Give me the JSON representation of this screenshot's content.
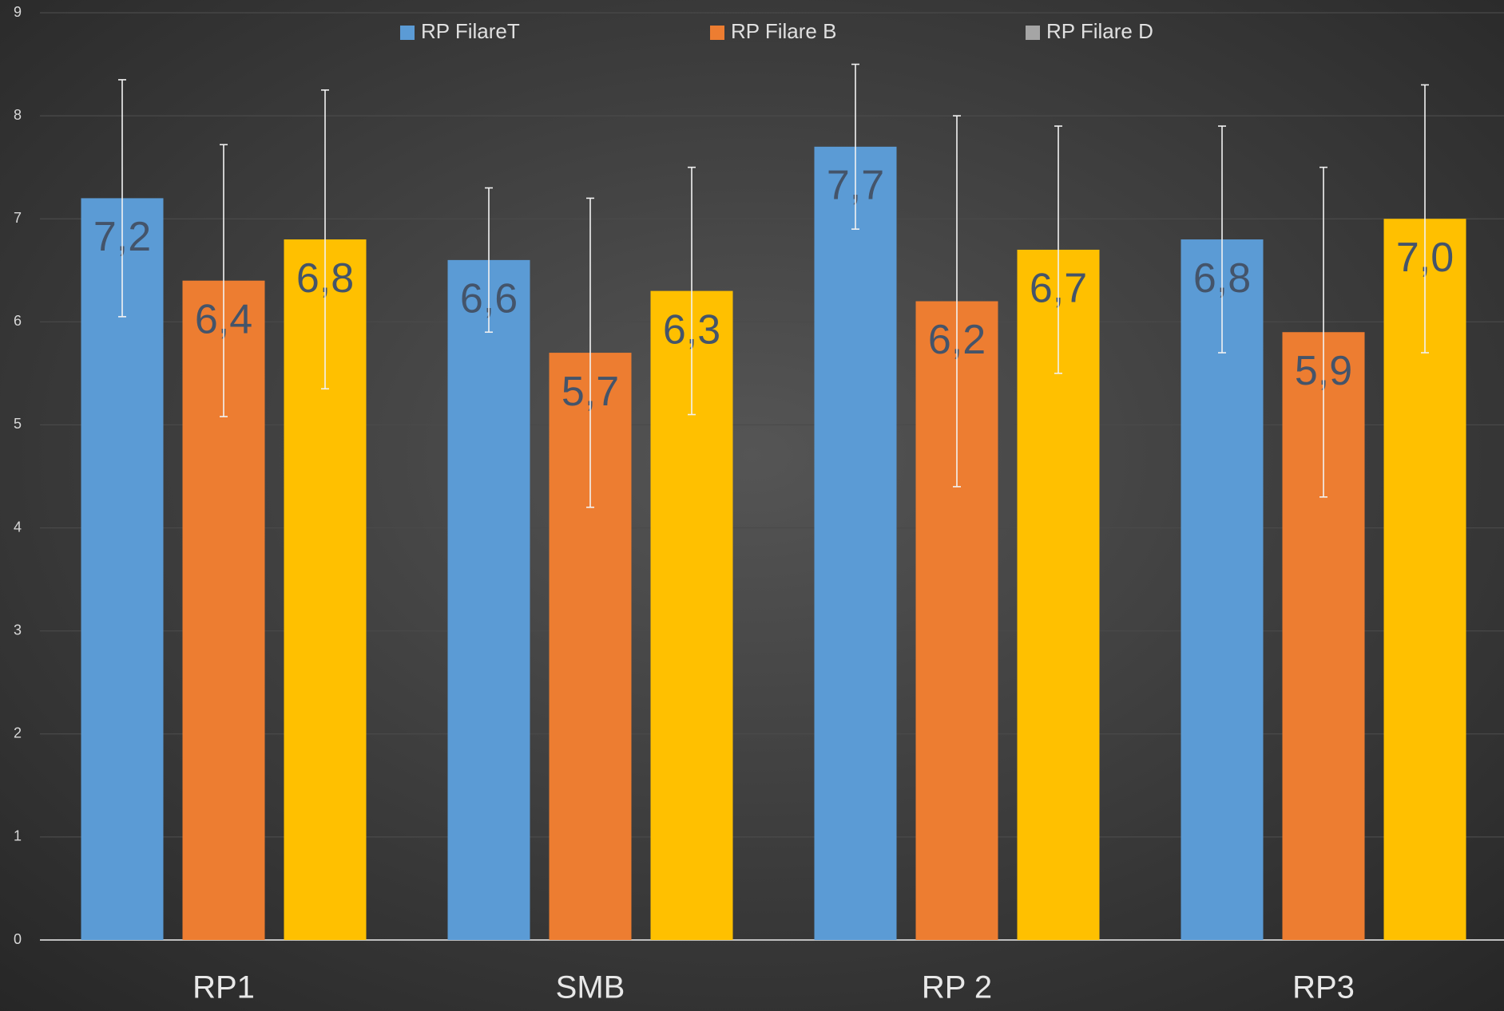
{
  "chart_data": {
    "type": "bar",
    "categories": [
      "RP1",
      "SMB",
      "RP 2",
      "RP3"
    ],
    "series": [
      {
        "name": "RP FilareT",
        "color": "#5b9bd5",
        "values": [
          7.2,
          6.6,
          7.7,
          6.8
        ],
        "value_labels": [
          "7,2",
          "6,6",
          "7,7",
          "6,8"
        ],
        "errors": [
          1.15,
          0.7,
          0.8,
          1.1
        ]
      },
      {
        "name": "RP Filare B",
        "color": "#ed7d31",
        "values": [
          6.4,
          5.7,
          6.2,
          5.9
        ],
        "value_labels": [
          "6,4",
          "5,7",
          "6,2",
          "5,9"
        ],
        "errors": [
          1.32,
          1.5,
          1.8,
          1.6
        ]
      },
      {
        "name": "RP Filare D",
        "color": "#ffc000",
        "legend_color": "#a5a5a5",
        "values": [
          6.8,
          6.3,
          6.7,
          7.0
        ],
        "value_labels": [
          "6,8",
          "6,3",
          "6,7",
          "7,0"
        ],
        "errors": [
          1.45,
          1.2,
          1.2,
          1.3
        ]
      }
    ],
    "ylim": [
      0,
      9
    ],
    "yticks": [
      0,
      1,
      2,
      3,
      4,
      5,
      6,
      7,
      8,
      9
    ],
    "grid": true,
    "legend": "top"
  }
}
